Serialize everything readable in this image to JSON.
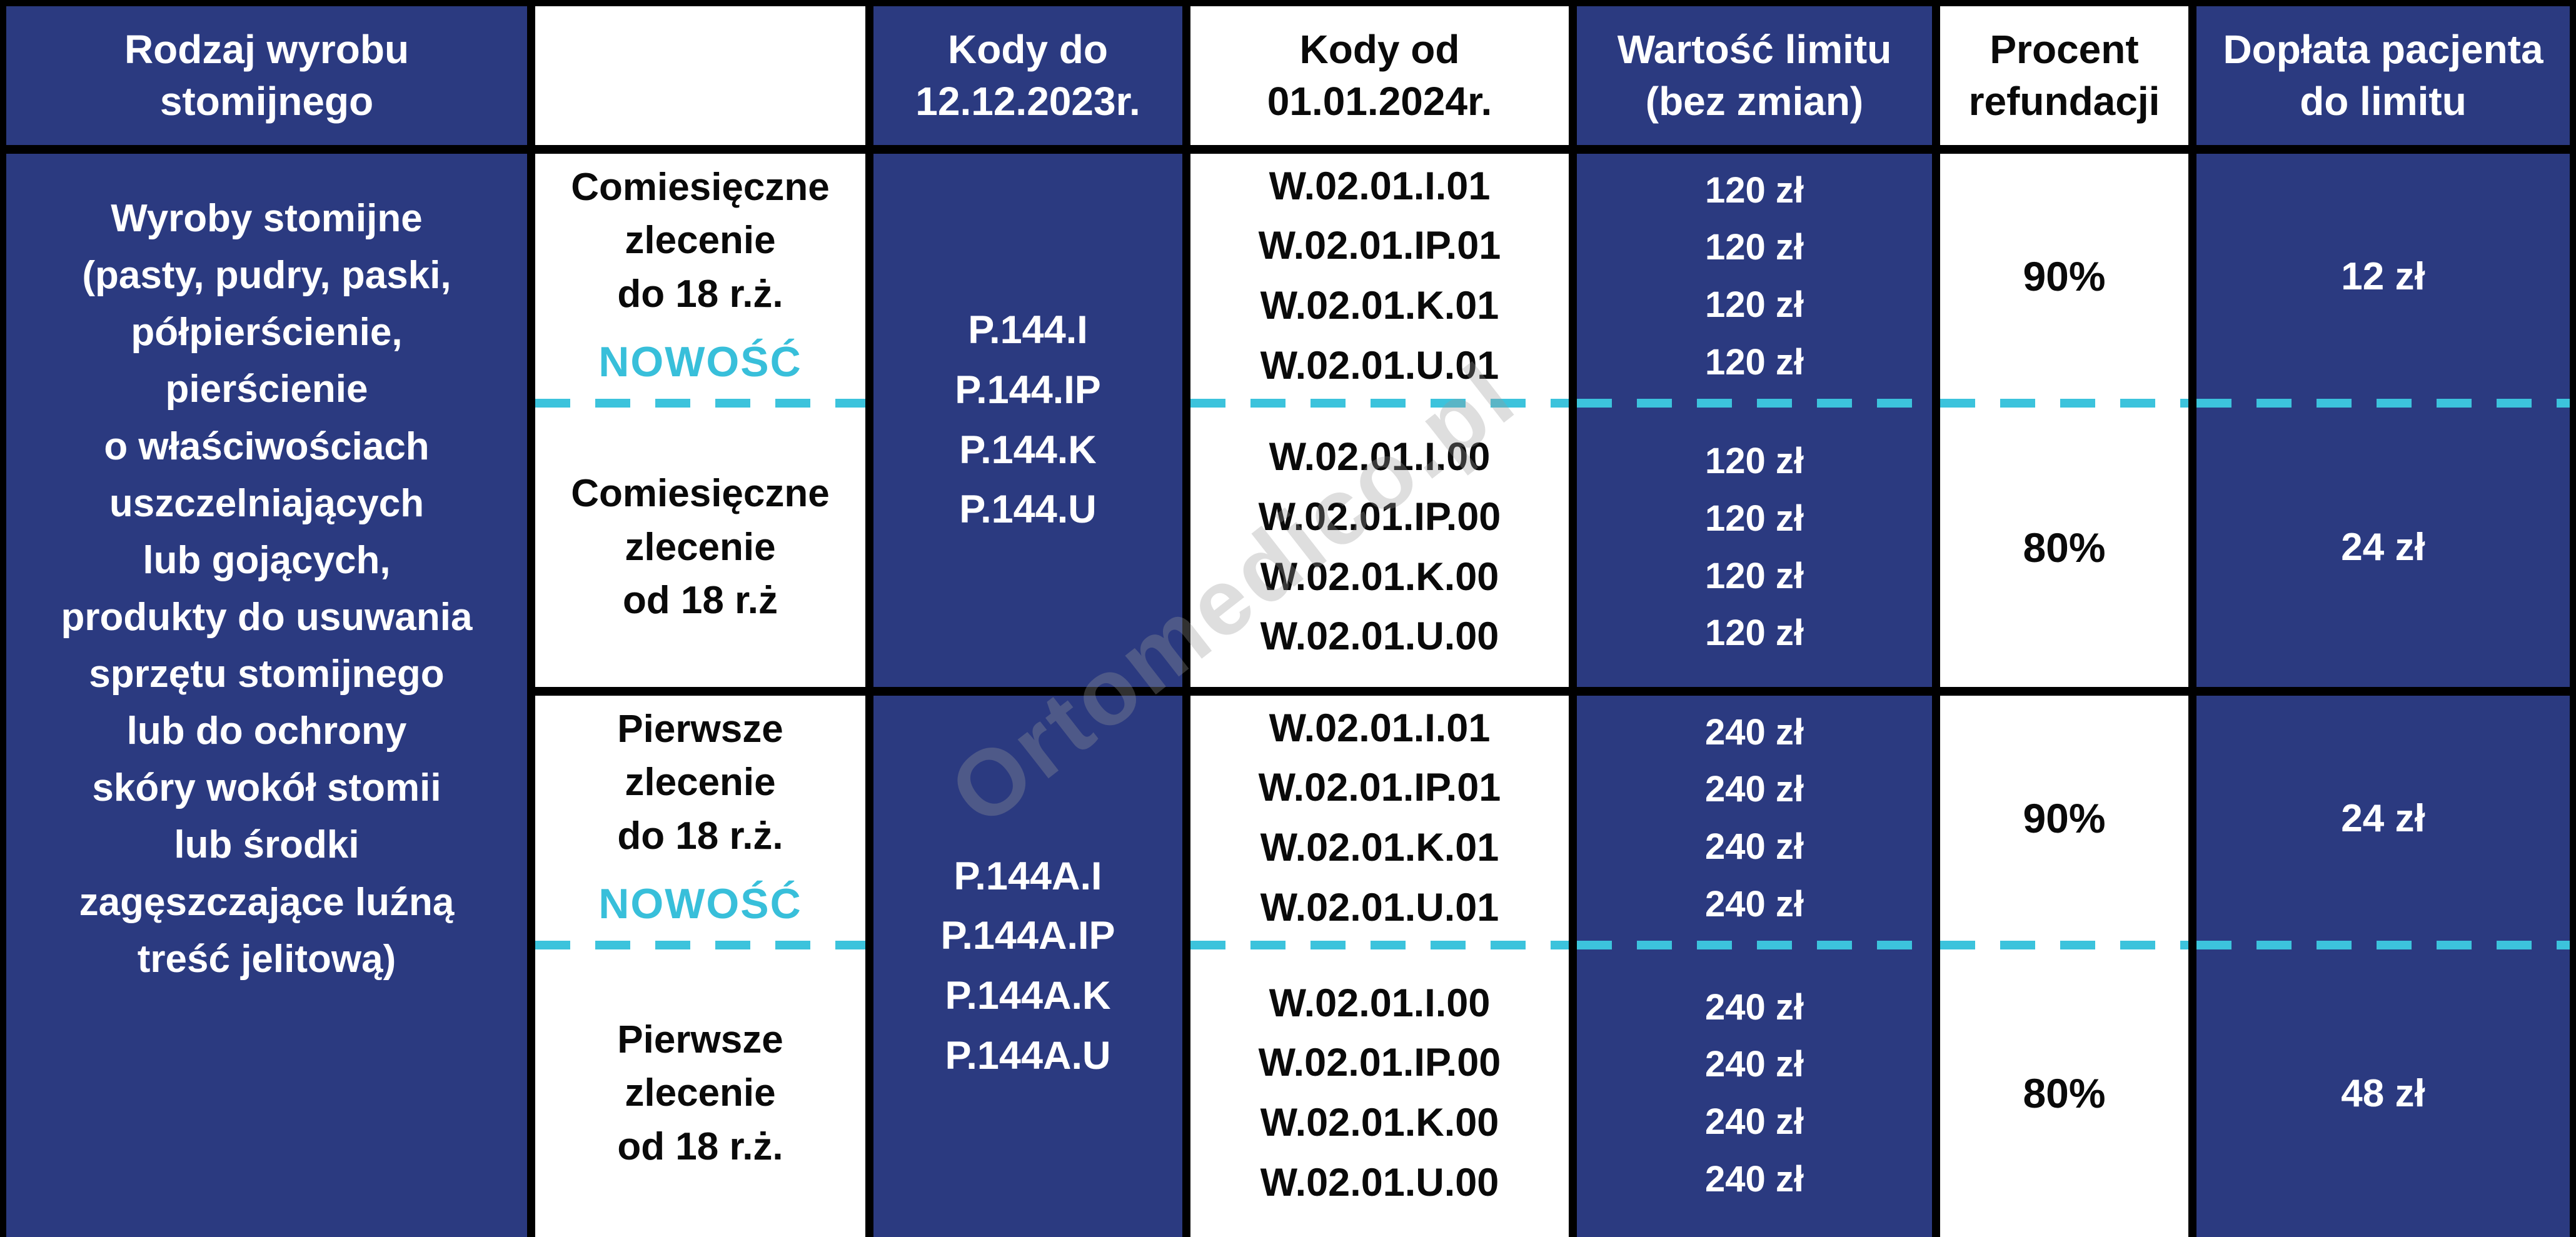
{
  "header": {
    "product_type": "Rodzaj wyrobu\nstomijnego",
    "empty": "",
    "codes_until": "Kody do\n12.12.2023r.",
    "codes_from": "Kody od\n01.01.2024r.",
    "limit_value": "Wartość limitu\n(bez zmian)",
    "refund_percent": "Procent\nrefundacji",
    "patient_copay": "Dopłata pacjenta\ndo limitu"
  },
  "product_description": "Wyroby stomijne\n(pasty, pudry, paski,\npółpierścienie,\npierścienie\no właściwościach\nuszczelniających\nlub gojących,\nprodukty do usuwania\nsprzętu stomijnego\nlub do ochrony\nskóry wokół stomii\nlub środki\nzagęszczające luźną\ntreść jelitową)",
  "groups": [
    {
      "codes_old": "P.144.I\nP.144.IP\nP.144.K\nP.144.U",
      "rows": [
        {
          "order_type": "Comiesięczne\nzlecenie\ndo 18 r.ż.",
          "new_badge": "NOWOŚĆ",
          "codes_new": "W.02.01.I.01\nW.02.01.IP.01\nW.02.01.K.01\nW.02.01.U.01",
          "limit": "120 zł\n120 zł\n120 zł\n120 zł",
          "refund": "90%",
          "copay": "12 zł"
        },
        {
          "order_type": "Comiesięczne\nzlecenie\nod 18 r.ż",
          "codes_new": "W.02.01.I.00\nW.02.01.IP.00\nW.02.01.K.00\nW.02.01.U.00",
          "limit": "120 zł\n120 zł\n120 zł\n120 zł",
          "refund": "80%",
          "copay": "24 zł"
        }
      ]
    },
    {
      "codes_old": "P.144A.I\nP.144A.IP\nP.144A.K\nP.144A.U",
      "rows": [
        {
          "order_type": "Pierwsze\nzlecenie\ndo 18 r.ż.",
          "new_badge": "NOWOŚĆ",
          "codes_new": "W.02.01.I.01\nW.02.01.IP.01\nW.02.01.K.01\nW.02.01.U.01",
          "limit": "240 zł\n240 zł\n240 zł\n240 zł",
          "refund": "90%",
          "copay": "24 zł"
        },
        {
          "order_type": "Pierwsze\nzlecenie\nod 18 r.ż.",
          "codes_new": "W.02.01.I.00\nW.02.01.IP.00\nW.02.01.K.00\nW.02.01.U.00",
          "limit": "240 zł\n240 zł\n240 zł\n240 zł",
          "refund": "80%",
          "copay": "48 zł"
        }
      ]
    }
  ],
  "watermark": "Ortomedico.pl",
  "colors": {
    "navy": "#2b3a80",
    "cyan": "#38bfda",
    "border": "#000000"
  }
}
